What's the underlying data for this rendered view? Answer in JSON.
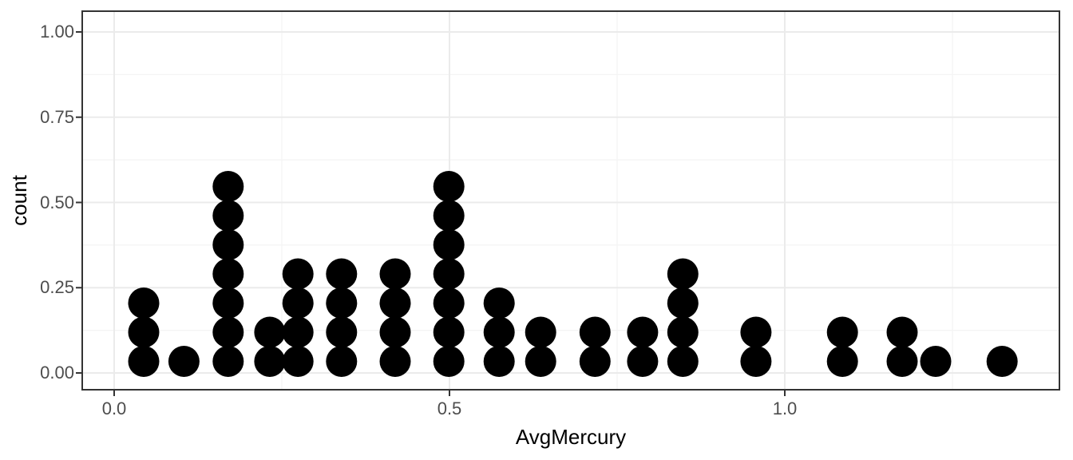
{
  "figure": {
    "background_color": "#ffffff"
  },
  "chart_data": {
    "type": "dotplot",
    "title": "",
    "xlabel": "AvgMercury",
    "ylabel": "count",
    "legend": false,
    "grid": true,
    "x_tick_labels": [
      "0.0",
      "0.5",
      "1.0"
    ],
    "x_tick_values": [
      0.0,
      0.5,
      1.0
    ],
    "y_tick_labels": [
      "0.00",
      "0.25",
      "0.50",
      "0.75",
      "1.00"
    ],
    "y_tick_values": [
      0.0,
      0.25,
      0.5,
      0.75,
      1.0
    ],
    "x_minor_grid_values": [
      0.25,
      0.75,
      1.25
    ],
    "y_minor_grid_values": [
      0.125,
      0.375,
      0.625,
      0.875
    ],
    "xlim": [
      -0.048,
      1.41
    ],
    "ylim": [
      -0.049,
      1.063
    ],
    "binwidth": 0.045,
    "total_points": 53,
    "stacks": [
      {
        "x": 0.044,
        "count": 3
      },
      {
        "x": 0.104,
        "count": 1
      },
      {
        "x": 0.17,
        "count": 7
      },
      {
        "x": 0.232,
        "count": 2
      },
      {
        "x": 0.274,
        "count": 4
      },
      {
        "x": 0.339,
        "count": 4
      },
      {
        "x": 0.419,
        "count": 4
      },
      {
        "x": 0.499,
        "count": 7
      },
      {
        "x": 0.574,
        "count": 3
      },
      {
        "x": 0.636,
        "count": 2
      },
      {
        "x": 0.717,
        "count": 2
      },
      {
        "x": 0.788,
        "count": 2
      },
      {
        "x": 0.848,
        "count": 4
      },
      {
        "x": 0.957,
        "count": 2
      },
      {
        "x": 1.086,
        "count": 2
      },
      {
        "x": 1.175,
        "count": 2
      },
      {
        "x": 1.225,
        "count": 1
      },
      {
        "x": 1.324,
        "count": 1
      }
    ],
    "colors": {
      "dot": "#000000",
      "grid_major": "#ebebeb",
      "grid_minor": "#f4f4f4",
      "panel_border": "#333333",
      "tick_mark": "#333333",
      "tick_label": "#4d4d4d",
      "axis_title": "#000000"
    }
  }
}
